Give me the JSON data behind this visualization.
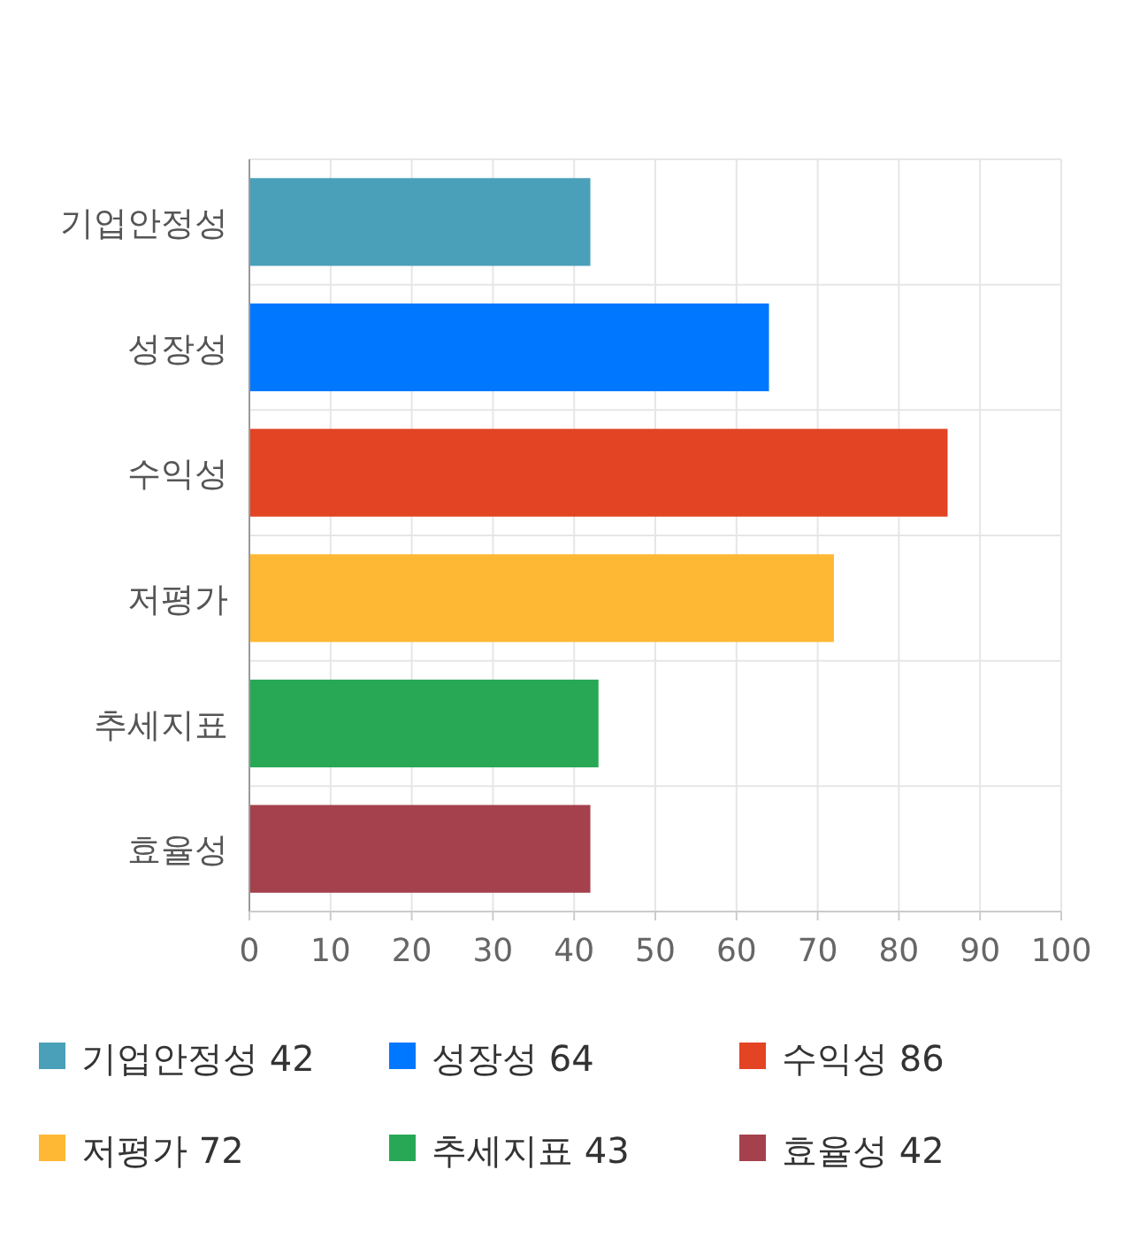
{
  "chart_data": {
    "type": "bar",
    "orientation": "horizontal",
    "stacked": true,
    "categories": [
      "기업안정성",
      "성장성",
      "수익성",
      "저평가",
      "추세지표",
      "효율성"
    ],
    "series": [
      {
        "name": "기업안정성 42",
        "color": "#4aa0b8",
        "values": [
          42,
          null,
          null,
          null,
          null,
          null
        ]
      },
      {
        "name": "성장성 64",
        "color": "#0077ff",
        "values": [
          null,
          64,
          null,
          null,
          null,
          null
        ]
      },
      {
        "name": "수익성 86",
        "color": "#e24424",
        "values": [
          null,
          null,
          86,
          null,
          null,
          null
        ]
      },
      {
        "name": "저평가 72",
        "color": "#ffb833",
        "values": [
          null,
          null,
          null,
          72,
          null,
          null
        ]
      },
      {
        "name": "추세지표 43",
        "color": "#28a855",
        "values": [
          null,
          null,
          null,
          null,
          43,
          null
        ]
      },
      {
        "name": "효율성 42",
        "color": "#a5404d",
        "values": [
          null,
          null,
          null,
          null,
          null,
          42
        ]
      }
    ],
    "xlim": [
      0,
      100
    ],
    "xticks": [
      0,
      10,
      20,
      30,
      40,
      50,
      60,
      70,
      80,
      90,
      100
    ],
    "grid": true,
    "legend": "bottom"
  }
}
